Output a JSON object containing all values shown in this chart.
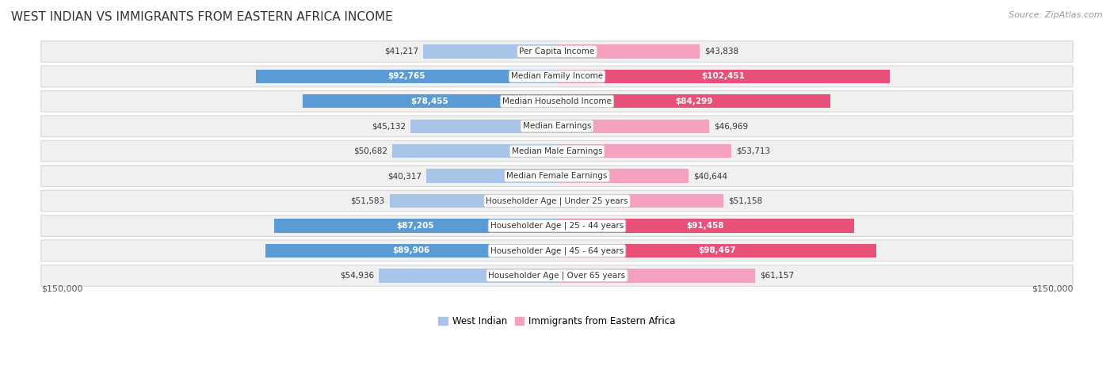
{
  "title": "WEST INDIAN VS IMMIGRANTS FROM EASTERN AFRICA INCOME",
  "source": "Source: ZipAtlas.com",
  "categories": [
    "Per Capita Income",
    "Median Family Income",
    "Median Household Income",
    "Median Earnings",
    "Median Male Earnings",
    "Median Female Earnings",
    "Householder Age | Under 25 years",
    "Householder Age | 25 - 44 years",
    "Householder Age | 45 - 64 years",
    "Householder Age | Over 65 years"
  ],
  "west_indian": [
    41217,
    92765,
    78455,
    45132,
    50682,
    40317,
    51583,
    87205,
    89906,
    54936
  ],
  "eastern_africa": [
    43838,
    102451,
    84299,
    46969,
    53713,
    40644,
    51158,
    91458,
    98467,
    61157
  ],
  "west_indian_color_light": "#a8c4e8",
  "west_indian_color_dark": "#5b9bd5",
  "eastern_africa_color_light": "#f4a0c0",
  "eastern_africa_color_dark": "#e8507a",
  "max_val": 150000,
  "threshold_dark": 75000,
  "row_bg": "#f0f0f0",
  "row_border": "#d8d8d8",
  "text_outside": "#555555",
  "text_inside": "#ffffff",
  "text_dark_outside": "#333333"
}
